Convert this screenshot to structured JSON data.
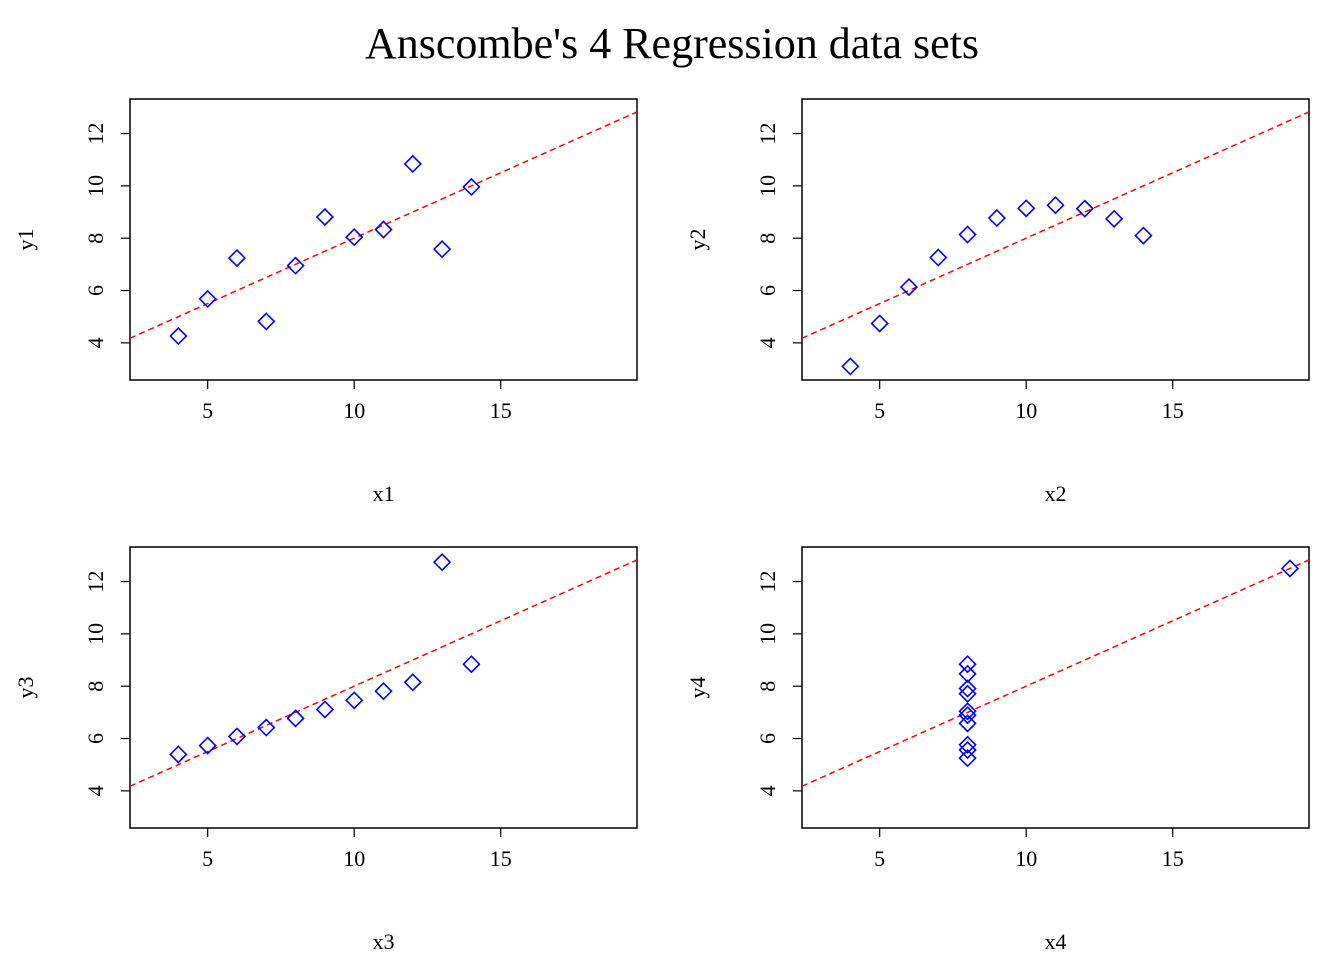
{
  "title": "Anscombe's 4 Regression data sets",
  "colors": {
    "points": "#0000ff",
    "fit_line": "#ff0000",
    "axes": "#000000"
  },
  "chart_data": [
    {
      "type": "scatter",
      "xlabel": "x1",
      "ylabel": "y1",
      "xlim": [
        2.35,
        19.65
      ],
      "ylim": [
        2.58,
        13.32
      ],
      "x_ticks": [
        5,
        10,
        15
      ],
      "y_ticks": [
        4,
        6,
        8,
        10,
        12
      ],
      "grid": false,
      "marker": "open-diamond",
      "fit_line": {
        "intercept": 3.0,
        "slope": 0.5,
        "style": "dashed"
      },
      "x": [
        10,
        8,
        13,
        9,
        11,
        14,
        6,
        4,
        12,
        7,
        5
      ],
      "y": [
        8.04,
        6.95,
        7.58,
        8.81,
        8.33,
        9.96,
        7.24,
        4.26,
        10.84,
        4.82,
        5.68
      ]
    },
    {
      "type": "scatter",
      "xlabel": "x2",
      "ylabel": "y2",
      "xlim": [
        2.35,
        19.65
      ],
      "ylim": [
        2.58,
        13.32
      ],
      "x_ticks": [
        5,
        10,
        15
      ],
      "y_ticks": [
        4,
        6,
        8,
        10,
        12
      ],
      "grid": false,
      "marker": "open-diamond",
      "fit_line": {
        "intercept": 3.0,
        "slope": 0.5,
        "style": "dashed"
      },
      "x": [
        10,
        8,
        13,
        9,
        11,
        14,
        6,
        4,
        12,
        7,
        5
      ],
      "y": [
        9.14,
        8.14,
        8.74,
        8.77,
        9.26,
        8.1,
        6.13,
        3.1,
        9.13,
        7.26,
        4.74
      ]
    },
    {
      "type": "scatter",
      "xlabel": "x3",
      "ylabel": "y3",
      "xlim": [
        2.35,
        19.65
      ],
      "ylim": [
        2.58,
        13.32
      ],
      "x_ticks": [
        5,
        10,
        15
      ],
      "y_ticks": [
        4,
        6,
        8,
        10,
        12
      ],
      "grid": false,
      "marker": "open-diamond",
      "fit_line": {
        "intercept": 3.0,
        "slope": 0.5,
        "style": "dashed"
      },
      "x": [
        10,
        8,
        13,
        9,
        11,
        14,
        6,
        4,
        12,
        7,
        5
      ],
      "y": [
        7.46,
        6.77,
        12.74,
        7.11,
        7.81,
        8.84,
        6.08,
        5.39,
        8.15,
        6.42,
        5.73
      ]
    },
    {
      "type": "scatter",
      "xlabel": "x4",
      "ylabel": "y4",
      "xlim": [
        2.35,
        19.65
      ],
      "ylim": [
        2.58,
        13.32
      ],
      "x_ticks": [
        5,
        10,
        15
      ],
      "y_ticks": [
        4,
        6,
        8,
        10,
        12
      ],
      "grid": false,
      "marker": "open-diamond",
      "fit_line": {
        "intercept": 3.0,
        "slope": 0.5,
        "style": "dashed"
      },
      "x": [
        8,
        8,
        8,
        8,
        8,
        8,
        8,
        19,
        8,
        8,
        8
      ],
      "y": [
        6.58,
        5.76,
        7.71,
        8.84,
        8.47,
        7.04,
        5.25,
        12.5,
        5.56,
        7.91,
        6.89
      ]
    }
  ]
}
